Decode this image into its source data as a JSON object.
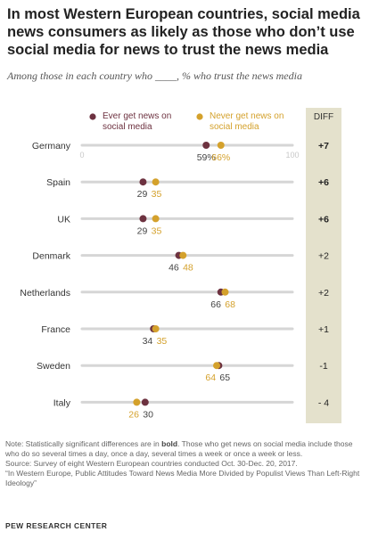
{
  "header": {
    "title": "In most Western European countries, social media news consumers as likely as those who don’t use social media for news to trust the news media",
    "subtitle": "Among those in each country who ____, % who trust the news media"
  },
  "notes": {
    "note_prefix": "Note: Statistically significant differences are in ",
    "note_bold": "bold",
    "note_suffix": ". Those who get news on social media include those who do so several times a day, once a day, several times a week or once a week or less.",
    "source": "Source: Survey of eight Western European countries conducted Oct. 30-Dec. 20, 2017.",
    "report": "“In Western Europe, Public Attitudes Toward News Media More Divided by Populist Views Than Left-Right Ideology”"
  },
  "credit": "PEW RESEARCH CENTER",
  "chart_data": {
    "type": "dot",
    "xlim": [
      0,
      100
    ],
    "axis_tick_labels": [
      "0",
      "100"
    ],
    "diff_header": "DIFF",
    "colors": {
      "ever": "#6d3240",
      "never": "#d4a12c",
      "diff_column": "#e4e1cc",
      "track": "#d6d6d6"
    },
    "categories": [
      "Germany",
      "Spain",
      "UK",
      "Denmark",
      "Netherlands",
      "France",
      "Sweden",
      "Italy"
    ],
    "series": [
      {
        "name": "Ever get news on social media",
        "values": [
          59,
          29,
          29,
          46,
          66,
          34,
          65,
          30
        ]
      },
      {
        "name": "Never get news on social media",
        "values": [
          66,
          35,
          35,
          48,
          68,
          35,
          64,
          26
        ]
      }
    ],
    "value_labels_first_row": [
      "59%",
      "66%"
    ],
    "diff": [
      "+7",
      "+6",
      "+6",
      "+2",
      "+2",
      "+1",
      "-1",
      "- 4"
    ],
    "diff_bold": [
      true,
      true,
      true,
      false,
      false,
      false,
      false,
      false
    ]
  }
}
